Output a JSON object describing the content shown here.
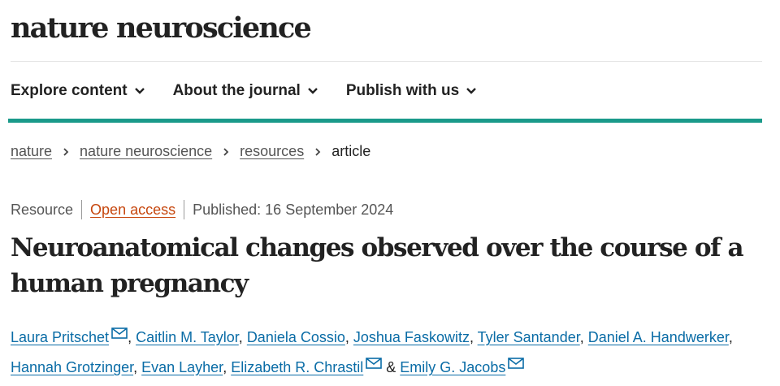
{
  "site": {
    "title": "nature neuroscience"
  },
  "nav": {
    "items": [
      {
        "label": "Explore content",
        "icon": "chevron-down-icon"
      },
      {
        "label": "About the journal",
        "icon": "chevron-down-icon"
      },
      {
        "label": "Publish with us",
        "icon": "chevron-down-icon"
      }
    ]
  },
  "colors": {
    "accent_rule": "#1a9a8a",
    "open_access": "#c6460d",
    "author_link": "#0a6ca6"
  },
  "breadcrumb": {
    "items": [
      "nature",
      "nature neuroscience",
      "resources"
    ],
    "current": "article"
  },
  "article": {
    "type": "Resource",
    "access": "Open access",
    "published": "Published: 16 September 2024",
    "title": "Neuroanatomical changes observed over the course of a human pregnancy",
    "authors": [
      {
        "name": "Laura Pritschet",
        "email_icon": true
      },
      {
        "name": "Caitlin M. Taylor",
        "email_icon": false
      },
      {
        "name": "Daniela Cossio",
        "email_icon": false
      },
      {
        "name": "Joshua Faskowitz",
        "email_icon": false
      },
      {
        "name": "Tyler Santander",
        "email_icon": false
      },
      {
        "name": "Daniel A. Handwerker",
        "email_icon": false
      },
      {
        "name": "Hannah Grotzinger",
        "email_icon": false
      },
      {
        "name": "Evan Layher",
        "email_icon": false
      },
      {
        "name": "Elizabeth R. Chrastil",
        "email_icon": true
      },
      {
        "name": "Emily G. Jacobs",
        "email_icon": true
      }
    ],
    "author_separators": [
      ", ",
      ", ",
      ", ",
      ", ",
      ", ",
      ", ",
      ", ",
      ", ",
      " & "
    ]
  }
}
